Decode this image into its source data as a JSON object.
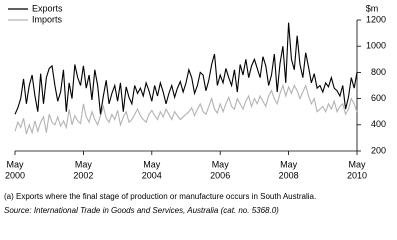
{
  "chart_data": {
    "type": "line",
    "unit_label": "$m",
    "x": [
      "2000-05",
      "2000-06",
      "2000-07",
      "2000-08",
      "2000-09",
      "2000-10",
      "2000-11",
      "2000-12",
      "2001-01",
      "2001-02",
      "2001-03",
      "2001-04",
      "2001-05",
      "2001-06",
      "2001-07",
      "2001-08",
      "2001-09",
      "2001-10",
      "2001-11",
      "2001-12",
      "2002-01",
      "2002-02",
      "2002-03",
      "2002-04",
      "2002-05",
      "2002-06",
      "2002-07",
      "2002-08",
      "2002-09",
      "2002-10",
      "2002-11",
      "2002-12",
      "2003-01",
      "2003-02",
      "2003-03",
      "2003-04",
      "2003-05",
      "2003-06",
      "2003-07",
      "2003-08",
      "2003-09",
      "2003-10",
      "2003-11",
      "2003-12",
      "2004-01",
      "2004-02",
      "2004-03",
      "2004-04",
      "2004-05",
      "2004-06",
      "2004-07",
      "2004-08",
      "2004-09",
      "2004-10",
      "2004-11",
      "2004-12",
      "2005-01",
      "2005-02",
      "2005-03",
      "2005-04",
      "2005-05",
      "2005-06",
      "2005-07",
      "2005-08",
      "2005-09",
      "2005-10",
      "2005-11",
      "2005-12",
      "2006-01",
      "2006-02",
      "2006-03",
      "2006-04",
      "2006-05",
      "2006-06",
      "2006-07",
      "2006-08",
      "2006-09",
      "2006-10",
      "2006-11",
      "2006-12",
      "2007-01",
      "2007-02",
      "2007-03",
      "2007-04",
      "2007-05",
      "2007-06",
      "2007-07",
      "2007-08",
      "2007-09",
      "2007-10",
      "2007-11",
      "2007-12",
      "2008-01",
      "2008-02",
      "2008-03",
      "2008-04",
      "2008-05",
      "2008-06",
      "2008-07",
      "2008-08",
      "2008-09",
      "2008-10",
      "2008-11",
      "2008-12",
      "2009-01",
      "2009-02",
      "2009-03",
      "2009-04",
      "2009-05",
      "2009-06",
      "2009-07",
      "2009-08",
      "2009-09",
      "2009-10",
      "2009-11",
      "2009-12",
      "2010-01",
      "2010-02",
      "2010-03",
      "2010-04",
      "2010-05"
    ],
    "series": [
      {
        "name": "Exports",
        "color": "#000000",
        "values": [
          480,
          530,
          600,
          750,
          560,
          700,
          780,
          620,
          500,
          790,
          560,
          760,
          830,
          850,
          700,
          580,
          650,
          820,
          500,
          720,
          600,
          860,
          760,
          700,
          850,
          680,
          780,
          590,
          820,
          700,
          480,
          620,
          740,
          560,
          640,
          700,
          580,
          720,
          500,
          690,
          610,
          560,
          700,
          640,
          680,
          620,
          720,
          660,
          580,
          700,
          620,
          720,
          650,
          560,
          640,
          700,
          610,
          680,
          730,
          650,
          720,
          820,
          760,
          640,
          700,
          800,
          780,
          660,
          740,
          860,
          940,
          700,
          780,
          720,
          830,
          760,
          700,
          820,
          650,
          860,
          780,
          900,
          760,
          850,
          900,
          830,
          760,
          920,
          850,
          700,
          780,
          940,
          650,
          870,
          1000,
          720,
          1180,
          900,
          820,
          1080,
          860,
          760,
          950,
          840,
          720,
          790,
          680,
          700,
          650,
          720,
          690,
          760,
          680,
          660,
          620,
          700,
          520,
          610,
          760,
          680,
          800
        ]
      },
      {
        "name": "Imports",
        "color": "#b3b3b3",
        "values": [
          350,
          420,
          380,
          450,
          330,
          400,
          340,
          430,
          350,
          420,
          460,
          340,
          480,
          420,
          400,
          460,
          390,
          430,
          380,
          520,
          400,
          470,
          430,
          410,
          560,
          460,
          420,
          500,
          440,
          400,
          470,
          540,
          450,
          420,
          480,
          440,
          510,
          400,
          460,
          500,
          420,
          440,
          480,
          520,
          470,
          440,
          420,
          480,
          510,
          470,
          440,
          500,
          460,
          520,
          480,
          440,
          500,
          470,
          440,
          460,
          480,
          500,
          530,
          470,
          520,
          560,
          500,
          480,
          540,
          600,
          520,
          490,
          560,
          500,
          560,
          610,
          540,
          520,
          600,
          560,
          520,
          580,
          620,
          540,
          600,
          560,
          620,
          580,
          540,
          620,
          660,
          600,
          560,
          640,
          700,
          620,
          690,
          640,
          700,
          660,
          600,
          650,
          700,
          620,
          560,
          600,
          500,
          520,
          540,
          500,
          560,
          520,
          580,
          500,
          540,
          560,
          480,
          520,
          600,
          560,
          500
        ]
      }
    ],
    "xlim": [
      "2000-05",
      "2010-05"
    ],
    "xticks": [
      {
        "value": "2000-05",
        "month": "May",
        "year": "2000"
      },
      {
        "value": "2002-05",
        "month": "May",
        "year": "2002"
      },
      {
        "value": "2004-05",
        "month": "May",
        "year": "2004"
      },
      {
        "value": "2006-05",
        "month": "May",
        "year": "2006"
      },
      {
        "value": "2008-05",
        "month": "May",
        "year": "2008"
      },
      {
        "value": "2010-05",
        "month": "May",
        "year": "2010"
      }
    ],
    "ylim": [
      200,
      1200
    ],
    "yticks": [
      200,
      400,
      600,
      800,
      1000,
      1200
    ],
    "footnote": "(a) Exports where the final stage of production or manufacture occurs in South Australia.",
    "source_label": "Source:",
    "source": "International Trade in Goods and Services, Australia (cat. no. 5368.0)"
  }
}
